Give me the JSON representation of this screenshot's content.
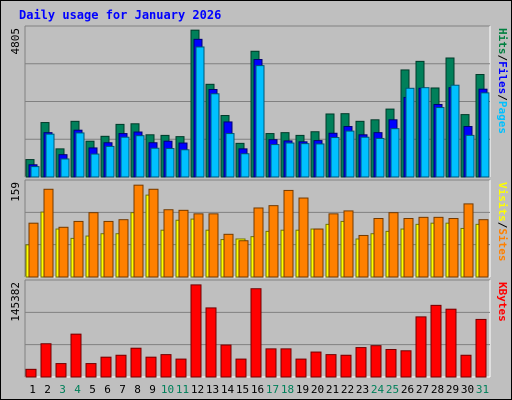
{
  "chart_data": {
    "type": "bar",
    "title": "Daily usage for January 2026",
    "categories": [
      "1",
      "2",
      "3",
      "4",
      "5",
      "6",
      "7",
      "8",
      "9",
      "10",
      "11",
      "12",
      "13",
      "14",
      "15",
      "16",
      "17",
      "18",
      "19",
      "20",
      "21",
      "22",
      "23",
      "24",
      "25",
      "26",
      "27",
      "28",
      "29",
      "30",
      "31"
    ],
    "weekend_days": [
      3,
      4,
      10,
      11,
      17,
      18,
      24,
      25,
      31
    ],
    "panels": [
      {
        "name": "pages-files-hits",
        "max_label": "4805",
        "ymax": 4805,
        "legend": [
          "Pages",
          "/",
          "Files",
          "/",
          "Hits"
        ],
        "legend_colors": [
          "#00c0ff",
          "#000000",
          "#0000ff",
          "#000000",
          "#008040"
        ],
        "series": [
          {
            "name": "Hits",
            "color": "#00805a",
            "values": [
              570,
              1780,
              920,
              1820,
              1170,
              1330,
              1720,
              1740,
              1380,
              1360,
              1320,
              4800,
              3030,
              2010,
              1100,
              4110,
              1420,
              1450,
              1360,
              1480,
              2060,
              2070,
              1820,
              1870,
              2220,
              3500,
              3780,
              2910,
              3890,
              2040,
              3350
            ]
          },
          {
            "name": "Files",
            "color": "#0000ff",
            "values": [
              400,
              1450,
              730,
              1530,
              950,
              1120,
              1420,
              1470,
              1120,
              1170,
              1110,
              4500,
              2860,
              1800,
              920,
              3840,
              1220,
              1180,
              1150,
              1190,
              1430,
              1650,
              1380,
              1450,
              1870,
              2600,
              2900,
              2370,
              2920,
              1650,
              2870
            ]
          },
          {
            "name": "Pages",
            "color": "#00c0ff",
            "values": [
              340,
              1400,
              590,
              1440,
              750,
              1000,
              1300,
              1350,
              940,
              930,
              890,
              4250,
              2720,
              1420,
              760,
              3640,
              1060,
              1110,
              1090,
              1080,
              1290,
              1500,
              1300,
              1260,
              1580,
              2900,
              2920,
              2270,
              3000,
              1360,
              2750
            ]
          }
        ]
      },
      {
        "name": "sites-visits",
        "max_label": "159",
        "ymax": 159,
        "legend": [
          "Sites",
          "/",
          "Visits"
        ],
        "legend_colors": [
          "#ff8000",
          "#000000",
          "#ffff00"
        ],
        "series": [
          {
            "name": "Visits",
            "color": "#ffff00",
            "values": [
              55,
              111,
              82,
              66,
              70,
              74,
              74,
              110,
              140,
              80,
              97,
              99,
              80,
              64,
              65,
              69,
              78,
              80,
              80,
              82,
              90,
              95,
              65,
              74,
              78,
              82,
              90,
              92,
              92,
              83,
              90
            ]
          },
          {
            "name": "Sites",
            "color": "#ff8000",
            "values": [
              92,
              150,
              85,
              95,
              110,
              95,
              98,
              157,
              150,
              115,
              114,
              108,
              108,
              73,
              62,
              118,
              122,
              148,
              135,
              82,
              108,
              113,
              71,
              100,
              110,
              100,
              102,
              102,
              100,
              125,
              98
            ]
          }
        ]
      },
      {
        "name": "kbytes",
        "max_label": "145382",
        "ymax": 145382,
        "legend": [
          "KBytes"
        ],
        "legend_colors": [
          "#ff0000"
        ],
        "series": [
          {
            "name": "KBytes",
            "color": "#ff0000",
            "values": [
              12000,
              52000,
              21000,
              67000,
              21000,
              31000,
              34000,
              45000,
              31000,
              35000,
              28000,
              144000,
              108000,
              50000,
              28000,
              138000,
              44000,
              44000,
              28000,
              39000,
              35000,
              34000,
              46000,
              49000,
              43000,
              41000,
              94000,
              112000,
              106000,
              34000,
              90000
            ]
          }
        ]
      }
    ]
  }
}
